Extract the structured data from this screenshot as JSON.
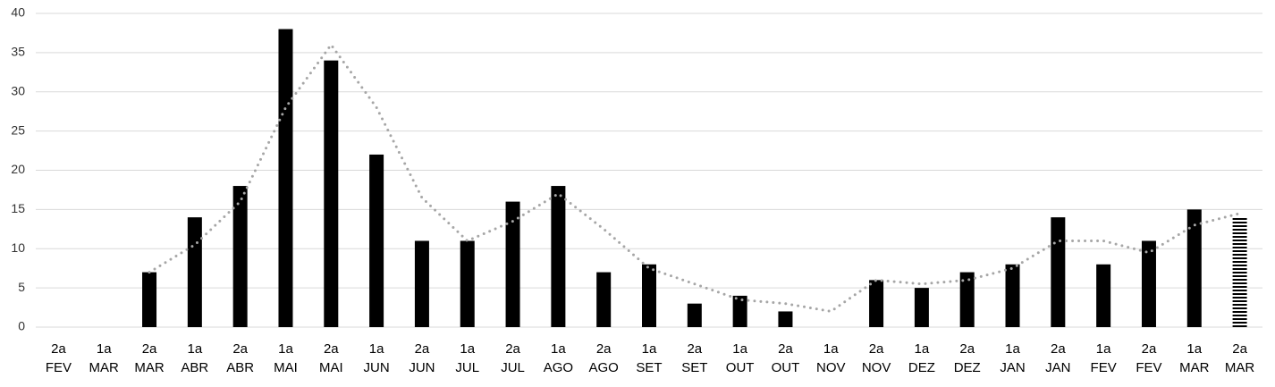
{
  "chart_data": {
    "type": "bar",
    "categories": [
      [
        "2a",
        "FEV"
      ],
      [
        "1a",
        "MAR"
      ],
      [
        "2a",
        "MAR"
      ],
      [
        "1a",
        "ABR"
      ],
      [
        "2a",
        "ABR"
      ],
      [
        "1a",
        "MAI"
      ],
      [
        "2a",
        "MAI"
      ],
      [
        "1a",
        "JUN"
      ],
      [
        "2a",
        "JUN"
      ],
      [
        "1a",
        "JUL"
      ],
      [
        "2a",
        "JUL"
      ],
      [
        "1a",
        "AGO"
      ],
      [
        "2a",
        "AGO"
      ],
      [
        "1a",
        "SET"
      ],
      [
        "2a",
        "SET"
      ],
      [
        "1a",
        "OUT"
      ],
      [
        "2a",
        "OUT"
      ],
      [
        "1a",
        "NOV"
      ],
      [
        "2a",
        "NOV"
      ],
      [
        "1a",
        "DEZ"
      ],
      [
        "2a",
        "DEZ"
      ],
      [
        "1a",
        "JAN"
      ],
      [
        "2a",
        "JAN"
      ],
      [
        "1a",
        "FEV"
      ],
      [
        "2a",
        "FEV"
      ],
      [
        "1a",
        "MAR"
      ],
      [
        "2a",
        "MAR"
      ]
    ],
    "series": [
      {
        "type": "bar",
        "color": "#000000",
        "values": [
          0,
          0,
          7,
          14,
          18,
          38,
          34,
          22,
          11,
          11,
          16,
          18,
          7,
          8,
          3,
          4,
          2,
          0,
          6,
          5,
          7,
          8,
          14,
          8,
          11,
          15,
          14
        ],
        "striped_bars": [
          26
        ]
      },
      {
        "type": "line",
        "color": "#a6a6a6",
        "line_style": "dotted",
        "values": [
          null,
          null,
          7,
          10.5,
          16,
          28,
          36,
          28,
          16.5,
          11,
          13.5,
          17,
          12.5,
          7.5,
          5.5,
          3.5,
          3,
          2,
          6,
          5.5,
          6,
          7.5,
          11,
          11,
          9.5,
          13,
          14.5
        ]
      }
    ],
    "ylim": [
      0,
      40
    ],
    "yticks": [
      0,
      5,
      10,
      15,
      20,
      25,
      30,
      35,
      40
    ],
    "grid": true,
    "grid_color": "#d9d9d9"
  }
}
